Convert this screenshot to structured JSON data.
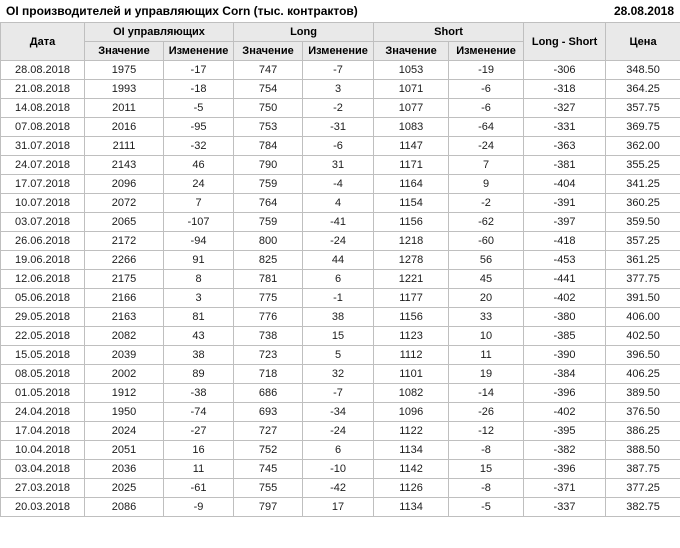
{
  "header": {
    "title": "OI производителей и управляющих Corn (тыс. контрактов)",
    "date": "28.08.2018"
  },
  "table": {
    "group_headers": {
      "date": "Дата",
      "oi": "OI управляющих",
      "long": "Long",
      "short": "Short",
      "long_short": "Long - Short",
      "price": "Цена"
    },
    "sub_headers": {
      "value": "Значение",
      "change": "Изменение"
    }
  },
  "colors": {
    "positive": "#228b22",
    "negative": "#b22230",
    "header_bg": "#e9e9e9",
    "border": "#bfbfbf",
    "text": "#1c1c1c"
  },
  "chart_data": {
    "type": "table",
    "title": "OI производителей и управляющих Corn (тыс. контрактов)",
    "as_of_date": "28.08.2018",
    "columns": [
      "Дата",
      "OI управляющих Значение",
      "OI управляющих Изменение",
      "Long Значение",
      "Long Изменение",
      "Short Значение",
      "Short Изменение",
      "Long - Short",
      "Цена"
    ],
    "rows": [
      [
        "28.08.2018",
        1975,
        -17,
        747,
        -7,
        1053,
        -19,
        -306,
        "348.50"
      ],
      [
        "21.08.2018",
        1993,
        -18,
        754,
        3,
        1071,
        -6,
        -318,
        "364.25"
      ],
      [
        "14.08.2018",
        2011,
        -5,
        750,
        -2,
        1077,
        -6,
        -327,
        "357.75"
      ],
      [
        "07.08.2018",
        2016,
        -95,
        753,
        -31,
        1083,
        -64,
        -331,
        "369.75"
      ],
      [
        "31.07.2018",
        2111,
        -32,
        784,
        -6,
        1147,
        -24,
        -363,
        "362.00"
      ],
      [
        "24.07.2018",
        2143,
        46,
        790,
        31,
        1171,
        7,
        -381,
        "355.25"
      ],
      [
        "17.07.2018",
        2096,
        24,
        759,
        -4,
        1164,
        9,
        -404,
        "341.25"
      ],
      [
        "10.07.2018",
        2072,
        7,
        764,
        4,
        1154,
        -2,
        -391,
        "360.25"
      ],
      [
        "03.07.2018",
        2065,
        -107,
        759,
        -41,
        1156,
        -62,
        -397,
        "359.50"
      ],
      [
        "26.06.2018",
        2172,
        -94,
        800,
        -24,
        1218,
        -60,
        -418,
        "357.25"
      ],
      [
        "19.06.2018",
        2266,
        91,
        825,
        44,
        1278,
        56,
        -453,
        "361.25"
      ],
      [
        "12.06.2018",
        2175,
        8,
        781,
        6,
        1221,
        45,
        -441,
        "377.75"
      ],
      [
        "05.06.2018",
        2166,
        3,
        775,
        -1,
        1177,
        20,
        -402,
        "391.50"
      ],
      [
        "29.05.2018",
        2163,
        81,
        776,
        38,
        1156,
        33,
        -380,
        "406.00"
      ],
      [
        "22.05.2018",
        2082,
        43,
        738,
        15,
        1123,
        10,
        -385,
        "402.50"
      ],
      [
        "15.05.2018",
        2039,
        38,
        723,
        5,
        1112,
        11,
        -390,
        "396.50"
      ],
      [
        "08.05.2018",
        2002,
        89,
        718,
        32,
        1101,
        19,
        -384,
        "406.25"
      ],
      [
        "01.05.2018",
        1912,
        -38,
        686,
        -7,
        1082,
        -14,
        -396,
        "389.50"
      ],
      [
        "24.04.2018",
        1950,
        -74,
        693,
        -34,
        1096,
        -26,
        -402,
        "376.50"
      ],
      [
        "17.04.2018",
        2024,
        -27,
        727,
        -24,
        1122,
        -12,
        -395,
        "386.25"
      ],
      [
        "10.04.2018",
        2051,
        16,
        752,
        6,
        1134,
        -8,
        -382,
        "388.50"
      ],
      [
        "03.04.2018",
        2036,
        11,
        745,
        -10,
        1142,
        15,
        -396,
        "387.75"
      ],
      [
        "27.03.2018",
        2025,
        -61,
        755,
        -42,
        1126,
        -8,
        -371,
        "377.25"
      ],
      [
        "20.03.2018",
        2086,
        -9,
        797,
        17,
        1134,
        -5,
        -337,
        "382.75"
      ]
    ]
  }
}
